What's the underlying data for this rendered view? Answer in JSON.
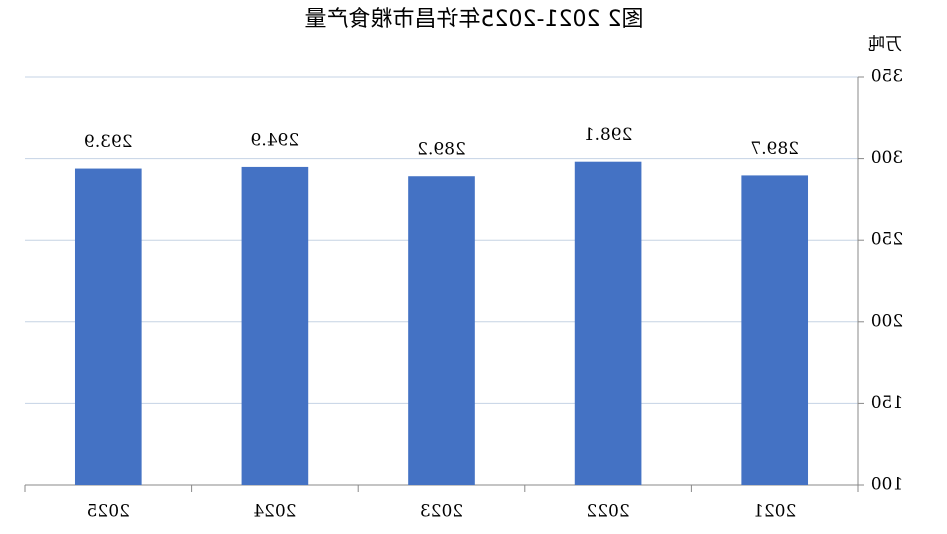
{
  "chart_data": {
    "type": "bar",
    "title": "图2  2021-2025年许昌市粮食产量",
    "unit": "万吨",
    "categories": [
      "2021",
      "2022",
      "2023",
      "2024",
      "2025"
    ],
    "values": [
      289.7,
      298.1,
      289.2,
      294.9,
      293.9
    ],
    "color": "#4472c4",
    "ylim": [
      100,
      350
    ],
    "yticks": [
      100,
      150,
      200,
      250,
      300,
      350
    ],
    "grid": true,
    "mirrored": true
  }
}
